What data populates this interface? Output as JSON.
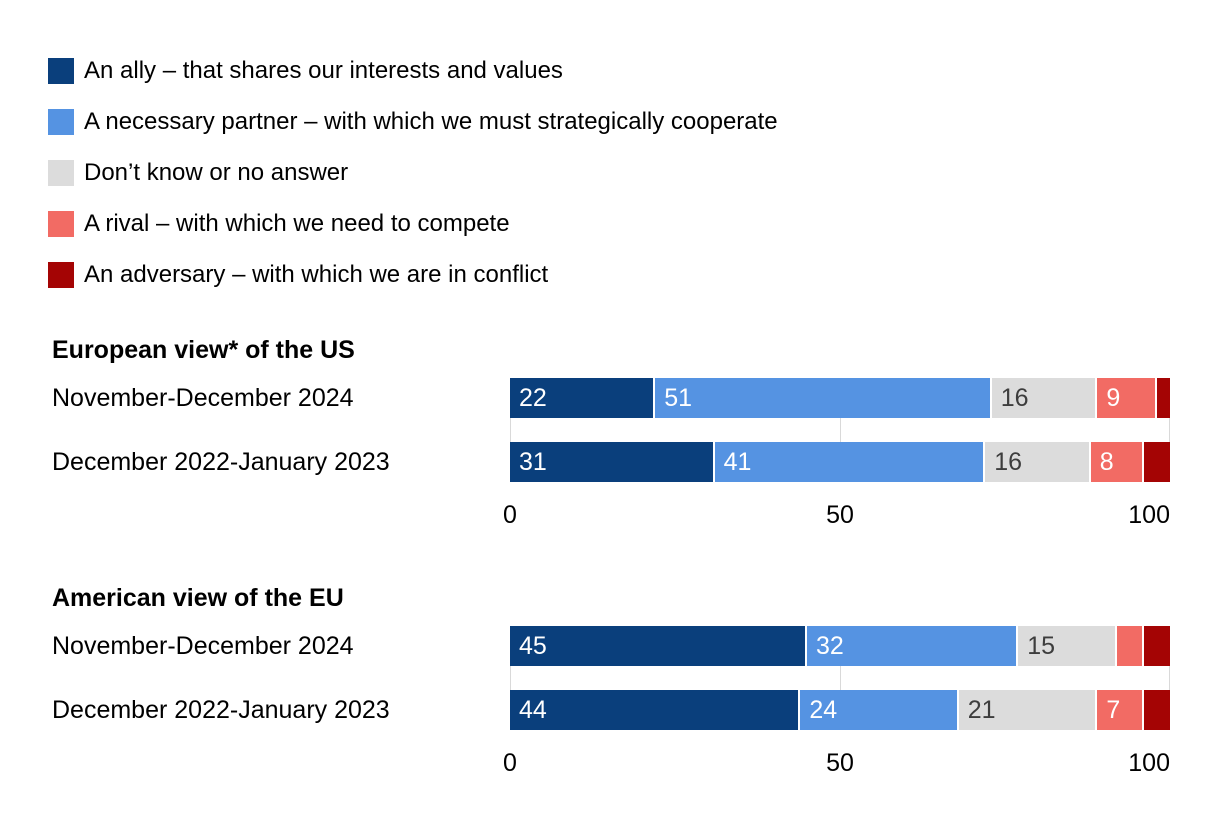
{
  "colors": {
    "ally": "#0a3f7c",
    "partner": "#5593e2",
    "dont_know": "#dcdcdc",
    "rival": "#f26b64",
    "adversary": "#a40404",
    "gridline": "#d9d9d9",
    "value_on_dark": "#ffffff",
    "value_on_light": "#3d3d3d"
  },
  "legend": [
    {
      "key": "ally",
      "label": "An ally – that shares our interests and values"
    },
    {
      "key": "partner",
      "label": "A necessary partner – with which we must strategically cooperate"
    },
    {
      "key": "dont_know",
      "label": "Don’t know or no answer"
    },
    {
      "key": "rival",
      "label": "A rival – with which we need to compete"
    },
    {
      "key": "adversary",
      "label": "An adversary – with which we are in conflict"
    }
  ],
  "chart_data": [
    {
      "type": "bar",
      "orientation": "horizontal",
      "stacked": true,
      "title": "European view* of the US",
      "categories": [
        "November-December 2024",
        "December 2022-January 2023"
      ],
      "series": [
        {
          "key": "ally",
          "name": "An ally – that shares our interests and values",
          "values": [
            22,
            31
          ],
          "value_labels": [
            "22",
            "31"
          ]
        },
        {
          "key": "partner",
          "name": "A necessary partner – with which we must strategically cooperate",
          "values": [
            51,
            41
          ],
          "value_labels": [
            "51",
            "41"
          ]
        },
        {
          "key": "dont_know",
          "name": "Don’t know or no answer",
          "values": [
            16,
            16
          ],
          "value_labels": [
            "16",
            "16"
          ]
        },
        {
          "key": "rival",
          "name": "A rival – with which we need to compete",
          "values": [
            9,
            8
          ],
          "value_labels": [
            "9",
            "8"
          ]
        },
        {
          "key": "adversary",
          "name": "An adversary – with which we are in conflict",
          "values": [
            2,
            4
          ],
          "value_labels": [
            "",
            ""
          ]
        }
      ],
      "xlim": [
        0,
        100
      ],
      "xticks": [
        0,
        50,
        100
      ],
      "grid": true,
      "legend_position": "top"
    },
    {
      "type": "bar",
      "orientation": "horizontal",
      "stacked": true,
      "title": "American view of the EU",
      "categories": [
        "November-December 2024",
        "December 2022-January 2023"
      ],
      "series": [
        {
          "key": "ally",
          "name": "An ally – that shares our interests and values",
          "values": [
            45,
            44
          ],
          "value_labels": [
            "45",
            "44"
          ]
        },
        {
          "key": "partner",
          "name": "A necessary partner – with which we must strategically cooperate",
          "values": [
            32,
            24
          ],
          "value_labels": [
            "32",
            "24"
          ]
        },
        {
          "key": "dont_know",
          "name": "Don’t know or no answer",
          "values": [
            15,
            21
          ],
          "value_labels": [
            "15",
            "21"
          ]
        },
        {
          "key": "rival",
          "name": "A rival – with which we need to compete",
          "values": [
            4,
            7
          ],
          "value_labels": [
            "",
            "7"
          ]
        },
        {
          "key": "adversary",
          "name": "An adversary – with which we are in conflict",
          "values": [
            4,
            4
          ],
          "value_labels": [
            "",
            ""
          ]
        }
      ],
      "xlim": [
        0,
        100
      ],
      "xticks": [
        0,
        50,
        100
      ],
      "grid": true,
      "legend_position": "top"
    }
  ],
  "layout_values": {
    "chart_tops": [
      336,
      584
    ]
  }
}
